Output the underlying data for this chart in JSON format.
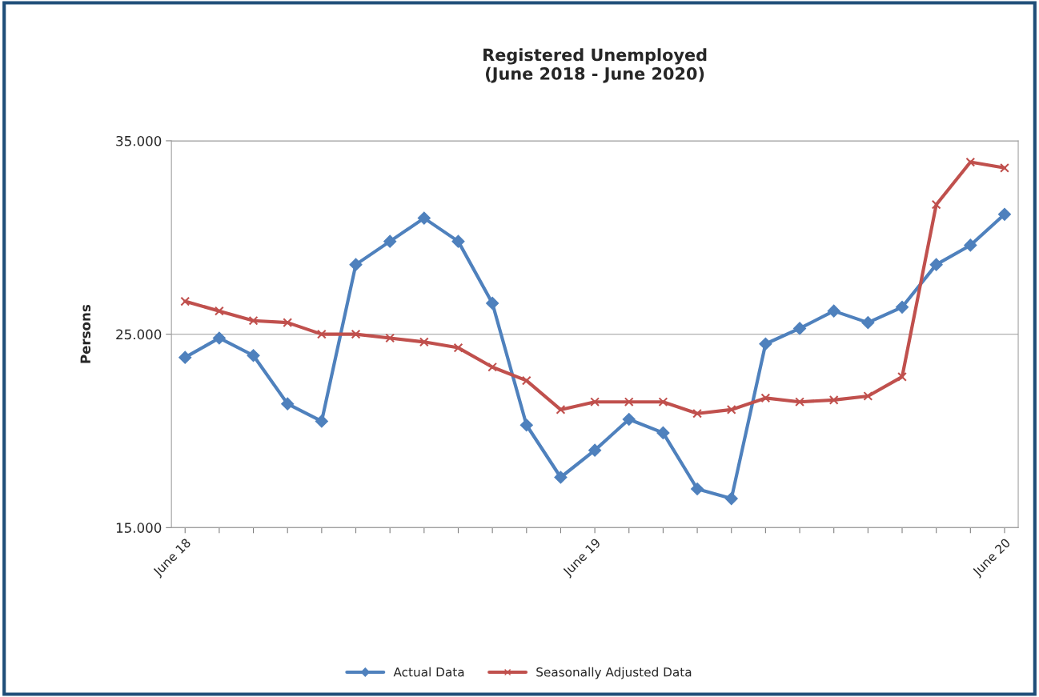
{
  "chart_data": {
    "type": "line",
    "title": "Registered Unemployed\n(June 2018 - June 2020)",
    "ylabel": "Persons",
    "categories": [
      "June 18",
      null,
      null,
      null,
      null,
      null,
      null,
      null,
      null,
      null,
      null,
      null,
      "June 19",
      null,
      null,
      null,
      null,
      null,
      null,
      null,
      null,
      null,
      null,
      null,
      "June 20"
    ],
    "series": [
      {
        "name": "Actual Data",
        "color": "#4f81bd",
        "marker": "diamond",
        "values": [
          23800,
          24800,
          23900,
          21400,
          20500,
          28600,
          29800,
          31000,
          29800,
          26600,
          20300,
          17600,
          19000,
          20600,
          19900,
          17000,
          16500,
          24500,
          25300,
          26200,
          25600,
          26400,
          28600,
          29600,
          31200
        ]
      },
      {
        "name": "Seasonally Adjusted Data",
        "color": "#c0504d",
        "marker": "cross",
        "values": [
          26700,
          26200,
          25700,
          25600,
          25000,
          25000,
          24800,
          24600,
          24300,
          23300,
          22600,
          21100,
          21500,
          21500,
          21500,
          20900,
          21100,
          21700,
          21500,
          21600,
          21800,
          22800,
          31700,
          33900,
          33600
        ]
      }
    ],
    "ylim": [
      15000,
      35000
    ],
    "yticks": [
      {
        "value": 15000,
        "label": "15.000"
      },
      {
        "value": 25000,
        "label": "25.000"
      },
      {
        "value": 35000,
        "label": "35.000"
      }
    ],
    "grid": "y",
    "legend": "bottom",
    "line_style": "solid"
  }
}
